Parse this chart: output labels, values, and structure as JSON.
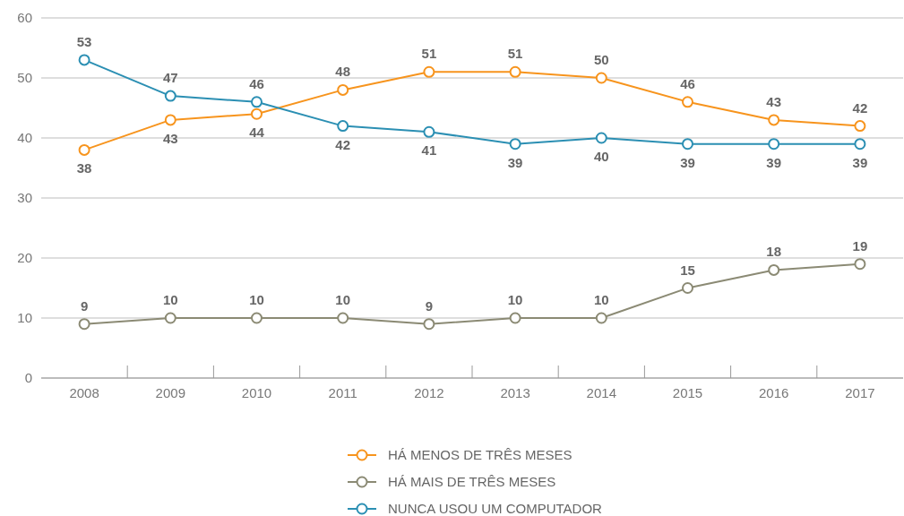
{
  "chart_data": {
    "type": "line",
    "categories": [
      "2008",
      "2009",
      "2010",
      "2011",
      "2012",
      "2013",
      "2014",
      "2015",
      "2016",
      "2017"
    ],
    "series": [
      {
        "name": "HÁ MENOS DE TRÊS MESES",
        "color": "#f7941d",
        "values": [
          38,
          43,
          44,
          48,
          51,
          51,
          50,
          46,
          43,
          42
        ]
      },
      {
        "name": "HÁ MAIS DE TRÊS MESES",
        "color": "#8b8a74",
        "values": [
          9,
          10,
          10,
          10,
          9,
          10,
          10,
          15,
          18,
          19
        ]
      },
      {
        "name": "NUNCA USOU UM COMPUTADOR",
        "color": "#2b8fb3",
        "values": [
          53,
          47,
          46,
          42,
          41,
          39,
          40,
          39,
          39,
          39
        ]
      }
    ],
    "ylim": [
      0,
      60
    ],
    "yticks": [
      0,
      10,
      20,
      30,
      40,
      50,
      60
    ],
    "grid": "y",
    "legend": "bottom",
    "marker": "circle",
    "line_style": "solid",
    "data_labels": true
  }
}
